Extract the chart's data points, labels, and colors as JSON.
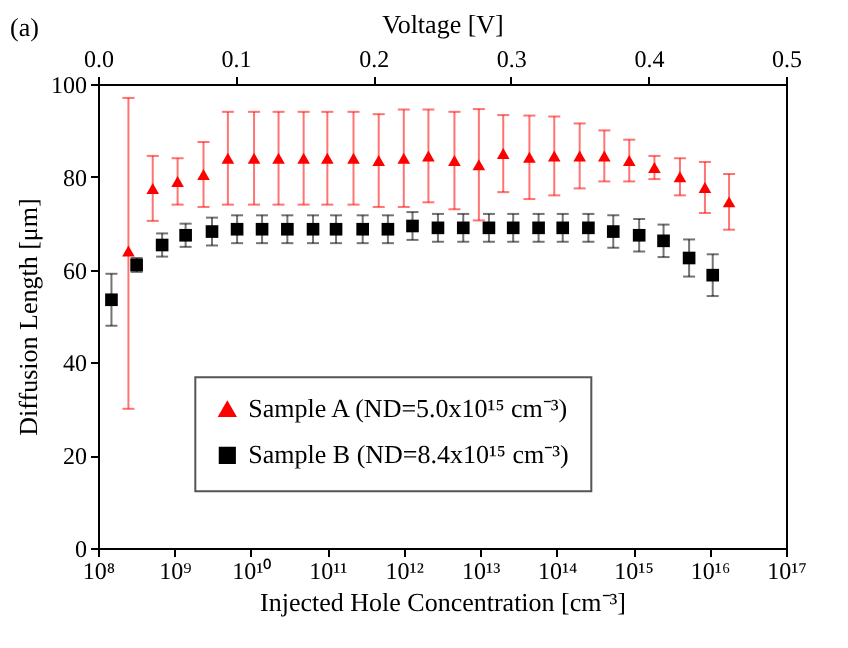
{
  "chart_data": {
    "type": "scatter",
    "xlabel": "Injected Hole Concentration [cm⁻³]",
    "ylabel": "Diffusion Length [μm]",
    "x2label": "Voltage [V]",
    "log": "x",
    "xlim": [
      100000000.0,
      1e+17
    ],
    "xticks": [
      {
        "value": 100000000.0,
        "label": "10⁸"
      },
      {
        "value": 1000000000.0,
        "label": "10⁹"
      },
      {
        "value": 10000000000.0,
        "label": "10¹⁰"
      },
      {
        "value": 100000000000.0,
        "label": "10¹¹"
      },
      {
        "value": 1000000000000.0,
        "label": "10¹²"
      },
      {
        "value": 10000000000000.0,
        "label": "10¹³"
      },
      {
        "value": 100000000000000.0,
        "label": "10¹⁴"
      },
      {
        "value": 1000000000000000.0,
        "label": "10¹⁵"
      },
      {
        "value": 1e+16,
        "label": "10¹⁶"
      },
      {
        "value": 1e+17,
        "label": "10¹⁷"
      }
    ],
    "x2lim": [
      0,
      0.5
    ],
    "x2ticks": [
      {
        "value": 0,
        "label": "0.0"
      },
      {
        "value": 0.1,
        "label": "0.1"
      },
      {
        "value": 0.2,
        "label": "0.2"
      },
      {
        "value": 0.3,
        "label": "0.3"
      },
      {
        "value": 0.4,
        "label": "0.4"
      },
      {
        "value": 0.5,
        "label": "0.5"
      }
    ],
    "ylim": [
      0,
      100
    ],
    "yticks": [
      0,
      20,
      40,
      60,
      80,
      100
    ],
    "grid": false,
    "legend": "bottom",
    "annotations": [
      "(a)"
    ],
    "series": [
      {
        "name": "Sample A (ND=5.0x10¹⁵ cm⁻³)",
        "color": "#ff0000",
        "marker": "triangle",
        "x": [
          250000000.0,
          520000000.0,
          1100000000.0,
          2400000000.0,
          5000000000.0,
          11000000000.0,
          23000000000.0,
          49000000000.0,
          100000000000.0,
          220000000000.0,
          470000000000.0,
          1000000000000.0,
          2100000000000.0,
          4600000000000.0,
          9600000000000.0,
          20000000000000.0,
          44000000000000.0,
          93000000000000.0,
          200000000000000.0,
          420000000000000.0,
          890000000000000.0,
          1900000000000000.0,
          4100000000000000.0,
          8700000000000000.0,
          1.8e+16
        ],
        "values": [
          64,
          77.5,
          79,
          80.5,
          84,
          84,
          84,
          84,
          84,
          84,
          83.5,
          84,
          84.5,
          83.5,
          82.6,
          85,
          84.2,
          84.5,
          84.5,
          84.5,
          83.5,
          82,
          80,
          77.7,
          74.6
        ],
        "errors": [
          [
            30,
            97
          ],
          7,
          5,
          7,
          10,
          10,
          10,
          10,
          10,
          10,
          10,
          10.5,
          10,
          10.5,
          12,
          8.3,
          9,
          8.5,
          7,
          5.5,
          4.5,
          2.5,
          4,
          5.5,
          6
        ]
      },
      {
        "name": "Sample B (ND=8.4x10¹⁵ cm⁻³)",
        "color": "#000000",
        "marker": "square",
        "x": [
          150000000.0,
          320000000.0,
          690000000.0,
          1400000000.0,
          3100000000.0,
          6600000000.0,
          14000000000.0,
          30000000000.0,
          65000000000.0,
          130000000000.0,
          290000000000.0,
          620000000000.0,
          1300000000000.0,
          2800000000000.0,
          6000000000000.0,
          13000000000000.0,
          27000000000000.0,
          58000000000000.0,
          120000000000000.0,
          260000000000000.0,
          550000000000000.0,
          1200000000000000.0,
          2500000000000000.0,
          5400000000000000.0,
          1.1e+16
        ],
        "values": [
          53.5,
          61,
          65.3,
          67.4,
          68.2,
          68.7,
          68.7,
          68.7,
          68.7,
          68.7,
          68.7,
          68.7,
          69.4,
          69,
          69,
          69,
          69,
          69,
          69,
          69,
          68.2,
          67.4,
          66.2,
          62.5,
          58.8
        ],
        "errors": [
          5.6,
          1.5,
          2.5,
          2.5,
          3,
          3,
          3,
          3,
          3,
          3,
          3,
          3,
          3,
          3,
          3,
          3,
          3,
          3,
          3,
          3,
          3.5,
          3.5,
          3.5,
          4,
          4.5
        ]
      }
    ]
  }
}
